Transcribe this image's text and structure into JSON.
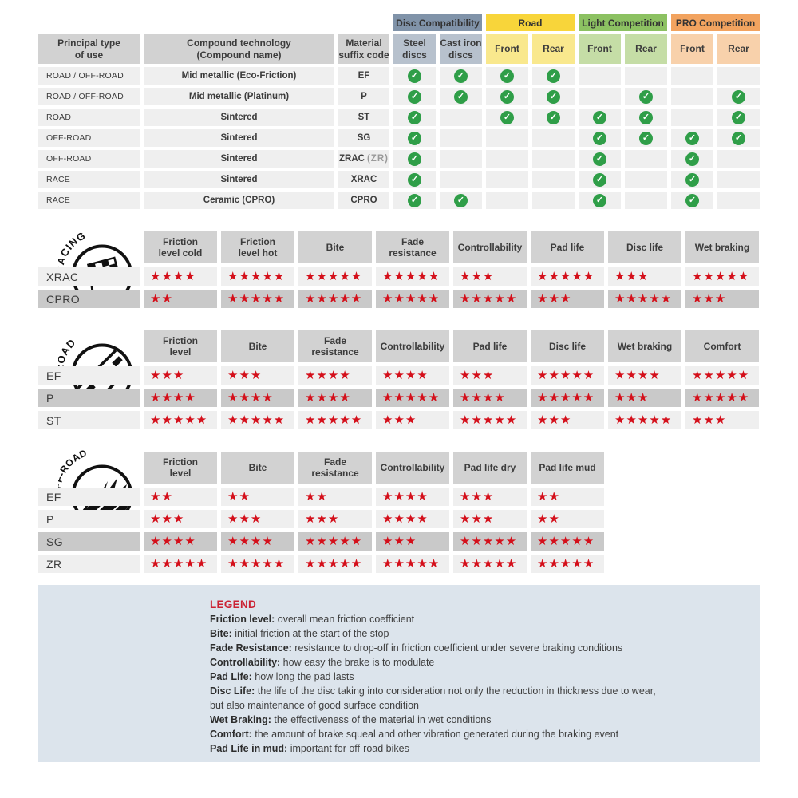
{
  "colors": {
    "header-gray": "#d2d2d2",
    "row-light": "#efefef",
    "row-dark": "#c9c9c9",
    "check-green": "#2f9e48",
    "star-red": "#d40f1a",
    "legend-bg": "#dce4ec",
    "legend-red": "#cb2233",
    "disc-compat": "#8093a9",
    "disc-compat-sub": "#b7c1cd",
    "road": "#f8d53a",
    "road-sub": "#f9e88d",
    "light-comp": "#8cc162",
    "light-comp-sub": "#c5dda6",
    "pro-comp": "#f2a35f",
    "pro-comp-sub": "#f8d1ab"
  },
  "compat_table": {
    "group_headers": [
      {
        "label": "Disc Compatibility",
        "color": "#8093a9",
        "sub_color": "#b7c1cd"
      },
      {
        "label": "Road",
        "color": "#f8d53a",
        "sub_color": "#f9e88d"
      },
      {
        "label": "Light Competition",
        "color": "#8cc162",
        "sub_color": "#c5dda6"
      },
      {
        "label": "PRO Competition",
        "color": "#f2a35f",
        "sub_color": "#f8d1ab"
      }
    ],
    "col_headers": [
      "Principal type\nof use",
      "Compound technology\n(Compound name)",
      "Material\nsuffix code"
    ],
    "sub_headers": [
      "Steel\ndiscs",
      "Cast iron\ndiscs",
      "Front",
      "Rear",
      "Front",
      "Rear",
      "Front",
      "Rear"
    ],
    "check_icon": "check-circle-icon",
    "rows": [
      {
        "use": "ROAD / OFF-ROAD",
        "compound": "Mid metallic (Eco-Friction)",
        "code": "EF",
        "code_note": "",
        "checks": [
          1,
          1,
          1,
          1,
          0,
          0,
          0,
          0
        ]
      },
      {
        "use": "ROAD / OFF-ROAD",
        "compound": "Mid metallic (Platinum)",
        "code": "P",
        "code_note": "",
        "checks": [
          1,
          1,
          1,
          1,
          0,
          1,
          0,
          1
        ]
      },
      {
        "use": "ROAD",
        "compound": "Sintered",
        "code": "ST",
        "code_note": "",
        "checks": [
          1,
          0,
          1,
          1,
          1,
          1,
          0,
          1
        ]
      },
      {
        "use": "OFF-ROAD",
        "compound": "Sintered",
        "code": "SG",
        "code_note": "",
        "checks": [
          1,
          0,
          0,
          0,
          1,
          1,
          1,
          1
        ]
      },
      {
        "use": "OFF-ROAD",
        "compound": "Sintered",
        "code": "ZRAC",
        "code_note": "(ZR)",
        "checks": [
          1,
          0,
          0,
          0,
          1,
          0,
          1,
          0
        ]
      },
      {
        "use": "RACE",
        "compound": "Sintered",
        "code": "XRAC",
        "code_note": "",
        "checks": [
          1,
          0,
          0,
          0,
          1,
          0,
          1,
          0
        ]
      },
      {
        "use": "RACE",
        "compound": "Ceramic (CPRO)",
        "code": "CPRO",
        "code_note": "",
        "checks": [
          1,
          1,
          0,
          0,
          1,
          0,
          1,
          0
        ]
      }
    ]
  },
  "section_labels": {
    "racing": "RACING",
    "road": "ROAD",
    "offroad": "OFF-ROAD"
  },
  "section_icons": {
    "racing": "racing-flag-icon",
    "road": "road-icon",
    "offroad": "offroad-mud-icon"
  },
  "sections": [
    {
      "id": "racing",
      "columns": [
        "Friction\nlevel cold",
        "Friction\nlevel hot",
        "Bite",
        "Fade\nresistance",
        "Controllability",
        "Pad life",
        "Disc life",
        "Wet braking"
      ],
      "rows": [
        {
          "label": "XRAC",
          "highlight": false,
          "stars": [
            4,
            5,
            5,
            5,
            3,
            5,
            3,
            5
          ]
        },
        {
          "label": "CPRO",
          "highlight": true,
          "stars": [
            2,
            5,
            5,
            5,
            5,
            3,
            5,
            3
          ]
        }
      ]
    },
    {
      "id": "road",
      "columns": [
        "Friction\nlevel",
        "Bite",
        "Fade\nresistance",
        "Controllability",
        "Pad life",
        "Disc life",
        "Wet braking",
        "Comfort"
      ],
      "rows": [
        {
          "label": "EF",
          "highlight": false,
          "stars": [
            3,
            3,
            4,
            4,
            3,
            5,
            4,
            5
          ]
        },
        {
          "label": "P",
          "highlight": true,
          "stars": [
            4,
            4,
            4,
            5,
            4,
            5,
            3,
            5
          ]
        },
        {
          "label": "ST",
          "highlight": false,
          "stars": [
            5,
            5,
            5,
            3,
            5,
            3,
            5,
            3
          ]
        }
      ]
    },
    {
      "id": "offroad",
      "columns": [
        "Friction\nlevel",
        "Bite",
        "Fade\nresistance",
        "Controllability",
        "Pad life dry",
        "Pad life mud"
      ],
      "rows": [
        {
          "label": "EF",
          "highlight": false,
          "stars": [
            2,
            2,
            2,
            4,
            3,
            2
          ]
        },
        {
          "label": "P",
          "highlight": false,
          "stars": [
            3,
            3,
            3,
            4,
            3,
            2
          ]
        },
        {
          "label": "SG",
          "highlight": true,
          "stars": [
            4,
            4,
            5,
            3,
            5,
            5
          ]
        },
        {
          "label": "ZR",
          "highlight": false,
          "stars": [
            5,
            5,
            5,
            5,
            5,
            5
          ]
        }
      ]
    }
  ],
  "legend": {
    "title": "LEGEND",
    "items": [
      {
        "term": "Friction level",
        "desc": "overall mean friction coefficient"
      },
      {
        "term": "Bite",
        "desc": "initial friction at the start of the stop"
      },
      {
        "term": "Fade Resistance",
        "desc": "resistance to drop-off in friction coefficient under severe braking conditions"
      },
      {
        "term": "Controllability",
        "desc": "how easy the brake is to modulate"
      },
      {
        "term": "Pad Life",
        "desc": "how long the pad lasts"
      },
      {
        "term": "Disc Life",
        "desc": "the life of the disc taking into consideration not only the reduction in thickness due to wear,"
      },
      {
        "term": "",
        "desc": "but also maintenance of good surface condition"
      },
      {
        "term": "Wet Braking",
        "desc": "the effectiveness of the material in wet conditions"
      },
      {
        "term": "Comfort",
        "desc": "the amount of brake squeal and other vibration generated during the braking event"
      },
      {
        "term": "Pad Life in mud",
        "desc": "important for off-road bikes"
      }
    ]
  }
}
